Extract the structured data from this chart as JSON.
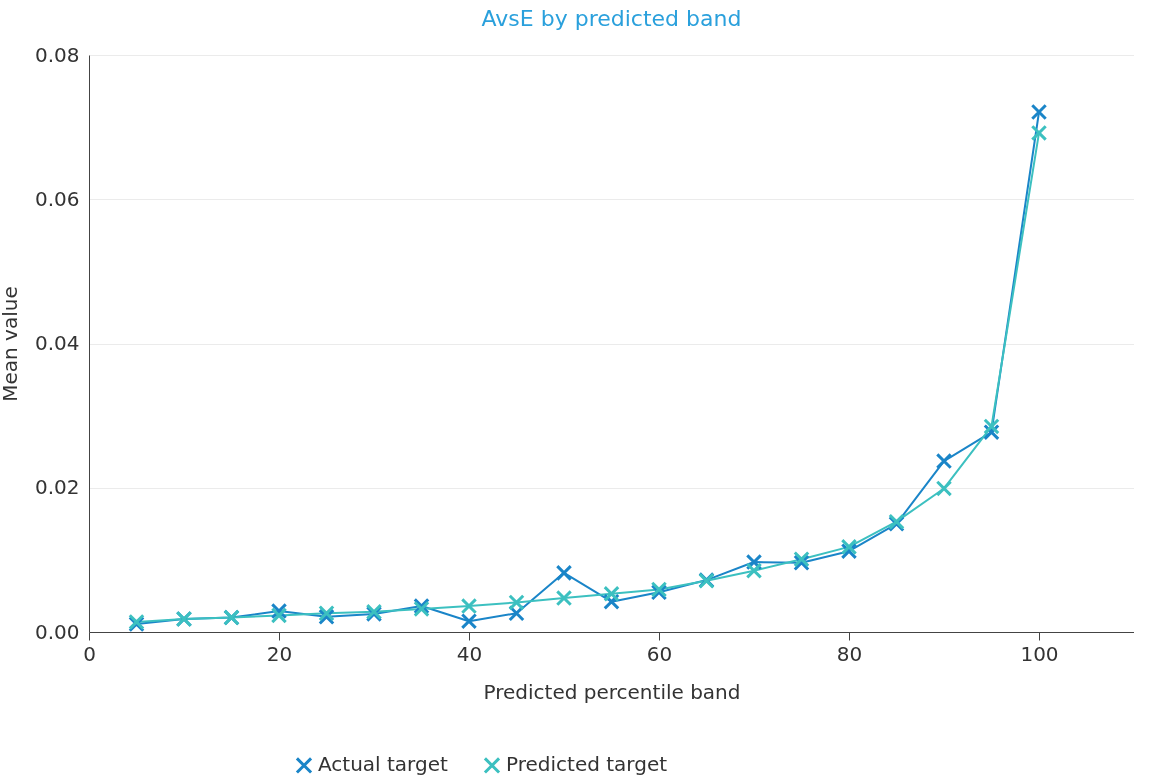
{
  "chart_data": {
    "type": "line",
    "title": "AvsE by predicted band",
    "xlabel": "Predicted percentile band",
    "ylabel": "Mean value",
    "x": [
      5,
      10,
      15,
      20,
      25,
      30,
      35,
      40,
      45,
      50,
      55,
      60,
      65,
      70,
      75,
      80,
      85,
      90,
      95,
      100
    ],
    "series": [
      {
        "name": "Actual target",
        "color": "#1a85c8",
        "values": [
          0.0011,
          0.0018,
          0.002,
          0.0029,
          0.0021,
          0.0025,
          0.0036,
          0.0015,
          0.0026,
          0.0082,
          0.0042,
          0.0055,
          0.0072,
          0.0097,
          0.0096,
          0.0112,
          0.015,
          0.0237,
          0.0277,
          0.0721
        ]
      },
      {
        "name": "Predicted target",
        "color": "#3cc0c0",
        "values": [
          0.0014,
          0.0018,
          0.002,
          0.0023,
          0.0026,
          0.0028,
          0.0032,
          0.0036,
          0.0041,
          0.0047,
          0.0053,
          0.0059,
          0.0071,
          0.0085,
          0.0101,
          0.0118,
          0.0153,
          0.0199,
          0.0285,
          0.0692
        ]
      }
    ],
    "xlim": [
      0,
      110
    ],
    "xticks": [
      0,
      20,
      40,
      60,
      80,
      100
    ],
    "ylim": [
      0,
      0.08
    ],
    "yticks": [
      {
        "value": 0,
        "label": "0.00"
      },
      0.02,
      0.04,
      0.06,
      0.08
    ],
    "grid": "y",
    "legend": "bottom",
    "marker": "cross",
    "line_style": "solid"
  }
}
